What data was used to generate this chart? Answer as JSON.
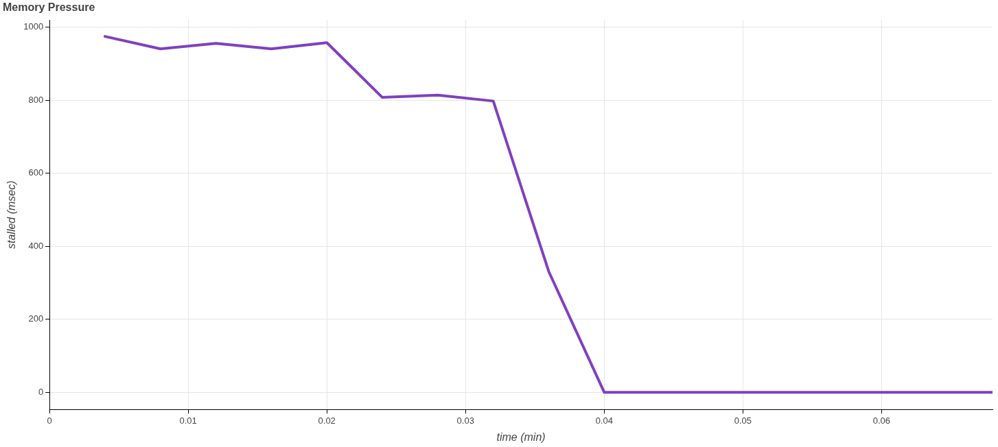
{
  "chart_data": {
    "type": "line",
    "title": "Memory Pressure",
    "xlabel": "time (min)",
    "ylabel": "stalled (msec)",
    "x": [
      0.004,
      0.008,
      0.012,
      0.016,
      0.02,
      0.024,
      0.028,
      0.032,
      0.036,
      0.04,
      0.044,
      0.048,
      0.052,
      0.056,
      0.06,
      0.064,
      0.068
    ],
    "series": [
      {
        "color": "#8040c0",
        "values": [
          975,
          941,
          956,
          941,
          958,
          808,
          814,
          798,
          331,
          0,
          0,
          0,
          0,
          0,
          0,
          0,
          0
        ]
      }
    ],
    "xlim": [
      0,
      0.068
    ],
    "xticks": [
      0,
      0.01,
      0.02,
      0.03,
      0.04,
      0.05,
      0.06
    ],
    "ylim": [
      -47,
      1020
    ],
    "yticks": [
      0,
      200,
      400,
      600,
      800,
      1000
    ],
    "grid": true,
    "legend": false,
    "marker": "none",
    "line_style": "solid"
  }
}
